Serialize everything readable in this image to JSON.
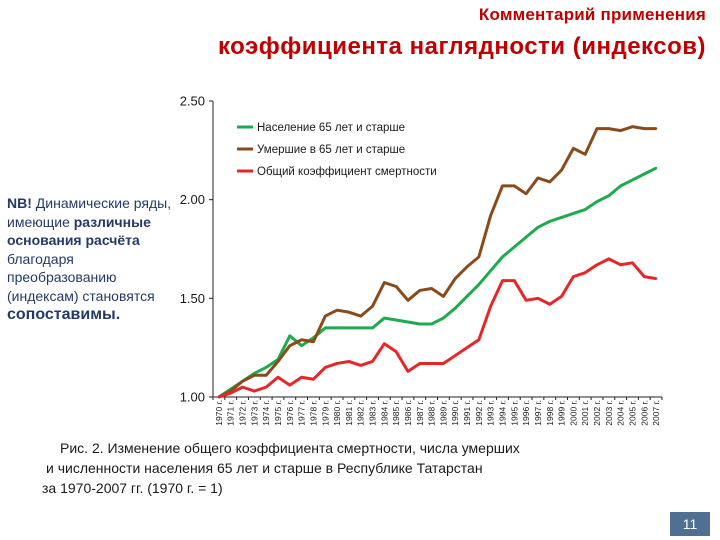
{
  "header": {
    "line1": "Комментарий применения",
    "line2": "коэффициента наглядности (индексов)"
  },
  "note": {
    "nb": "NB!",
    "part1": " Динамические ряды, имеющие ",
    "bold1": "различные основания расчёта",
    "part2": " благодаря преобразованию (индексам) становятся ",
    "bold2": "сопоставимы."
  },
  "caption": {
    "line1": "Рис. 2. Изменение общего коэффициента смертности, числа умерших",
    "line2": "и численности населения 65 лет и старше в Республике Татарстан",
    "line3": "за 1970-2007 гг. (1970 г. = 1)"
  },
  "page_number": "11",
  "colors": {
    "population": "#1faa4e",
    "deaths": "#8a4b1a",
    "mortality": "#e8262a",
    "title": "#c00000",
    "note": "#243a66"
  },
  "chart_data": {
    "type": "line",
    "ylim": [
      1.0,
      2.5
    ],
    "yticks": [
      "1.00",
      "1.50",
      "2.00",
      "2.50"
    ],
    "ytick_values": [
      1.0,
      1.5,
      2.0,
      2.5
    ],
    "legend_position": "top",
    "categories": [
      "1970 г.",
      "1971 г.",
      "1972 г.",
      "1973 г.",
      "1974 г.",
      "1975 г.",
      "1976 г.",
      "1977 г.",
      "1978 г.",
      "1979 г.",
      "1980 г.",
      "1981 г.",
      "1982 г.",
      "1983 г.",
      "1984 г.",
      "1985 г.",
      "1986 г.",
      "1987 г.",
      "1988 г.",
      "1989 г.",
      "1990 г.",
      "1991 г.",
      "1992 г.",
      "1993 г.",
      "1994 г.",
      "1995 г.",
      "1996 г.",
      "1997 г.",
      "1998 г.",
      "1999 г.",
      "2000 г.",
      "2001 г.",
      "2002 г.",
      "2003 г.",
      "2004 г.",
      "2005 г.",
      "2006 г.",
      "2007 г."
    ],
    "series": [
      {
        "name": "Население 65 лет и старше",
        "color": "#1faa4e",
        "values": [
          1.0,
          1.04,
          1.08,
          1.12,
          1.15,
          1.19,
          1.31,
          1.26,
          1.3,
          1.35,
          1.35,
          1.35,
          1.35,
          1.35,
          1.4,
          1.39,
          1.38,
          1.37,
          1.37,
          1.4,
          1.45,
          1.51,
          1.57,
          1.64,
          1.71,
          1.76,
          1.81,
          1.86,
          1.89,
          1.91,
          1.93,
          1.95,
          1.99,
          2.02,
          2.07,
          2.1,
          2.13,
          2.16
        ]
      },
      {
        "name": "Умершие в 65 лет и старше",
        "color": "#8a4b1a",
        "values": [
          1.0,
          1.03,
          1.08,
          1.11,
          1.11,
          1.18,
          1.26,
          1.29,
          1.28,
          1.41,
          1.44,
          1.43,
          1.41,
          1.46,
          1.58,
          1.56,
          1.49,
          1.54,
          1.55,
          1.51,
          1.6,
          1.66,
          1.71,
          1.92,
          2.07,
          2.07,
          2.03,
          2.11,
          2.09,
          2.15,
          2.26,
          2.23,
          2.36,
          2.36,
          2.35,
          2.37,
          2.36,
          2.36
        ]
      },
      {
        "name": "Общий коэффициент смертности",
        "color": "#e8262a",
        "values": [
          1.0,
          1.02,
          1.05,
          1.03,
          1.05,
          1.1,
          1.06,
          1.1,
          1.09,
          1.15,
          1.17,
          1.18,
          1.16,
          1.18,
          1.27,
          1.23,
          1.13,
          1.17,
          1.17,
          1.17,
          1.21,
          1.25,
          1.29,
          1.46,
          1.59,
          1.59,
          1.49,
          1.5,
          1.47,
          1.51,
          1.61,
          1.63,
          1.67,
          1.7,
          1.67,
          1.68,
          1.61,
          1.6
        ]
      }
    ]
  }
}
